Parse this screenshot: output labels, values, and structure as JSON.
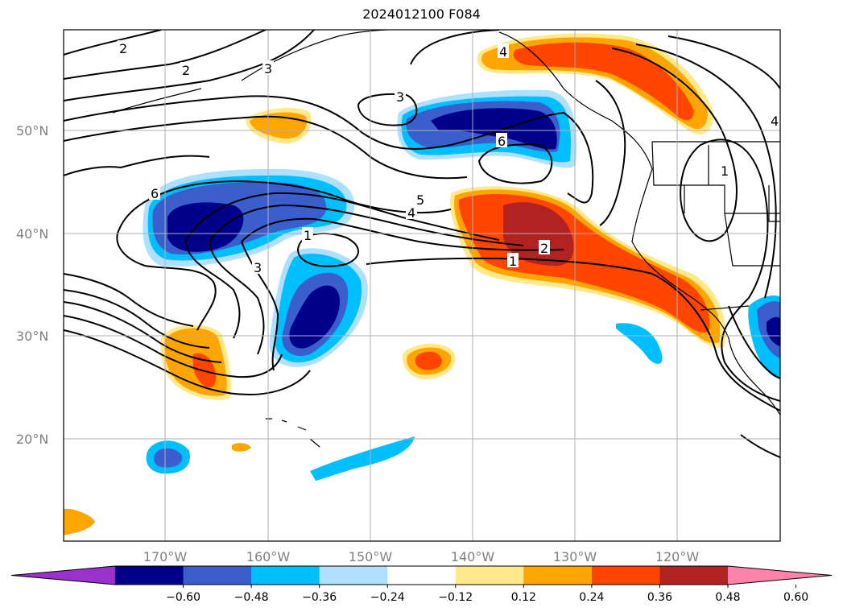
{
  "title": "2024012100 F084",
  "lat_labels": [
    "50°N",
    "40°N",
    "30°N",
    "20°N"
  ],
  "lon_labels": [
    "170°W",
    "160°W",
    "150°W",
    "140°W",
    "130°W",
    "120°W"
  ],
  "colorbar": {
    "ticks": [
      "−0.60",
      "−0.48",
      "−0.36",
      "−0.24",
      "−0.12",
      "0.12",
      "0.24",
      "0.36",
      "0.48",
      "0.60"
    ],
    "colors": [
      "#9932cc",
      "#00008b",
      "#3a5fcd",
      "#00bfff",
      "#afe0ff",
      "#ffffff",
      "#ffe98a",
      "#ffa500",
      "#ff4500",
      "#b22222",
      "#ff82ab"
    ]
  },
  "contour_labels": [
    "2",
    "2",
    "3",
    "3",
    "4",
    "6",
    "6",
    "5",
    "4",
    "1",
    "3",
    "2",
    "1",
    "1",
    "4"
  ],
  "colors": {
    "contour": "#000000",
    "grid": "#b0b0b0",
    "axis_label": "#808080"
  }
}
